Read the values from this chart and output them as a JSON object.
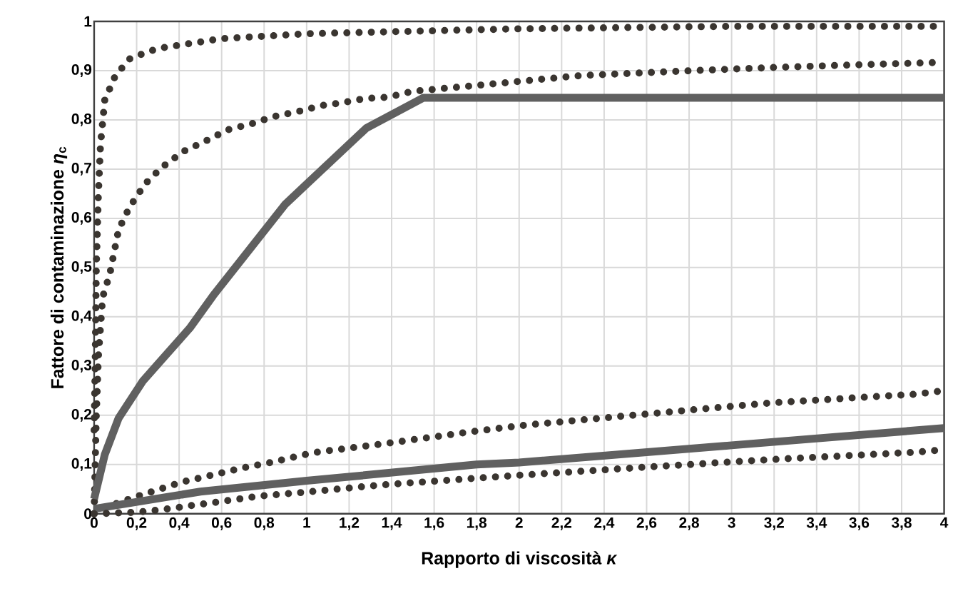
{
  "chart_data": {
    "type": "line",
    "xlabel": "Rapporto di viscosità *κ*",
    "ylabel": "Fattore di contaminazione *η*$_{c}$",
    "xlim": [
      0,
      4
    ],
    "ylim": [
      0,
      1
    ],
    "xticks": [
      0,
      {
        "value": 0.2,
        "label": "0,2"
      },
      {
        "value": 0.4,
        "label": "0,4"
      },
      {
        "value": 0.6,
        "label": "0,6"
      },
      {
        "value": 0.8,
        "label": "0,8"
      },
      1,
      {
        "value": 1.2,
        "label": "1,2"
      },
      {
        "value": 1.4,
        "label": "1,4"
      },
      {
        "value": 1.6,
        "label": "1,6"
      },
      {
        "value": 1.8,
        "label": "1,8"
      },
      2,
      {
        "value": 2.2,
        "label": "2,2"
      },
      {
        "value": 2.4,
        "label": "2,4"
      },
      {
        "value": 2.6,
        "label": "2,6"
      },
      {
        "value": 2.8,
        "label": "2,8"
      },
      3,
      {
        "value": 3.2,
        "label": "3,2"
      },
      {
        "value": 3.4,
        "label": "3,4"
      },
      {
        "value": 3.6,
        "label": "3,6"
      },
      {
        "value": 3.8,
        "label": "3,8"
      },
      4
    ],
    "yticks": [
      0,
      {
        "value": 0.1,
        "label": "0,1"
      },
      {
        "value": 0.2,
        "label": "0,2"
      },
      {
        "value": 0.3,
        "label": "0,3"
      },
      {
        "value": 0.4,
        "label": "0,4"
      },
      {
        "value": 0.5,
        "label": "0,5"
      },
      {
        "value": 0.6,
        "label": "0,6"
      },
      {
        "value": 0.7,
        "label": "0,7"
      },
      {
        "value": 0.8,
        "label": "0,8"
      },
      {
        "value": 0.9,
        "label": "0,9"
      },
      1
    ],
    "grid": true,
    "series": [
      {
        "color": "#3a3530",
        "line_style": "dotted",
        "x": [
          0,
          0.005,
          0.01,
          0.02,
          0.03,
          0.05,
          0.1,
          0.17,
          0.3,
          0.45,
          0.6,
          0.8,
          1.0,
          1.5,
          2.0,
          3.0,
          4.0
        ],
        "values": [
          0.17,
          0.3,
          0.5,
          0.65,
          0.75,
          0.84,
          0.89,
          0.925,
          0.945,
          0.955,
          0.965,
          0.97,
          0.975,
          0.98,
          0.985,
          0.99,
          0.99
        ]
      },
      {
        "color": "#3a3530",
        "line_style": "dotted",
        "x": [
          0,
          0.01,
          0.02,
          0.04,
          0.074,
          0.115,
          0.167,
          0.24,
          0.32,
          0.42,
          0.52,
          0.63,
          0.74,
          0.84,
          0.96,
          1.07,
          1.17,
          1.27,
          1.38,
          1.5,
          1.85,
          2.29,
          2.76,
          3.23,
          3.92,
          4.0
        ],
        "values": [
          0.0,
          0.2,
          0.32,
          0.44,
          0.487,
          0.577,
          0.623,
          0.67,
          0.704,
          0.736,
          0.756,
          0.78,
          0.792,
          0.806,
          0.817,
          0.829,
          0.835,
          0.843,
          0.846,
          0.858,
          0.872,
          0.89,
          0.899,
          0.907,
          0.916,
          0.917
        ]
      },
      {
        "color": "#606060",
        "line_style": "solid",
        "x": [
          0,
          0.05,
          0.115,
          0.23,
          0.45,
          0.56,
          0.9,
          1.28,
          1.55,
          4.0
        ],
        "values": [
          0.03,
          0.12,
          0.194,
          0.27,
          0.377,
          0.443,
          0.629,
          0.783,
          0.845,
          0.845
        ]
      },
      {
        "color": "#3a3530",
        "line_style": "dotted",
        "x": [
          0,
          0.1,
          0.2,
          0.31,
          0.41,
          0.52,
          0.62,
          0.72,
          0.83,
          1.03,
          1.36,
          1.8,
          2.03,
          2.61,
          3.18,
          3.87,
          4.0
        ],
        "values": [
          0.0,
          0.02,
          0.035,
          0.05,
          0.064,
          0.075,
          0.085,
          0.095,
          0.104,
          0.124,
          0.142,
          0.168,
          0.18,
          0.203,
          0.225,
          0.243,
          0.25
        ]
      },
      {
        "color": "#606060",
        "line_style": "solid",
        "x": [
          0,
          0.5,
          1.0,
          1.8,
          2.0,
          3.0,
          4.0
        ],
        "values": [
          0.01,
          0.045,
          0.067,
          0.1,
          0.104,
          0.139,
          0.174
        ]
      },
      {
        "color": "#3a3530",
        "line_style": "dotted",
        "x": [
          0,
          0.2,
          0.33,
          0.55,
          0.78,
          1.0,
          1.34,
          1.79,
          2.03,
          2.61,
          3.18,
          3.87,
          4.0
        ],
        "values": [
          0.0,
          0.003,
          0.009,
          0.022,
          0.036,
          0.044,
          0.058,
          0.072,
          0.079,
          0.095,
          0.11,
          0.125,
          0.13
        ]
      }
    ]
  }
}
